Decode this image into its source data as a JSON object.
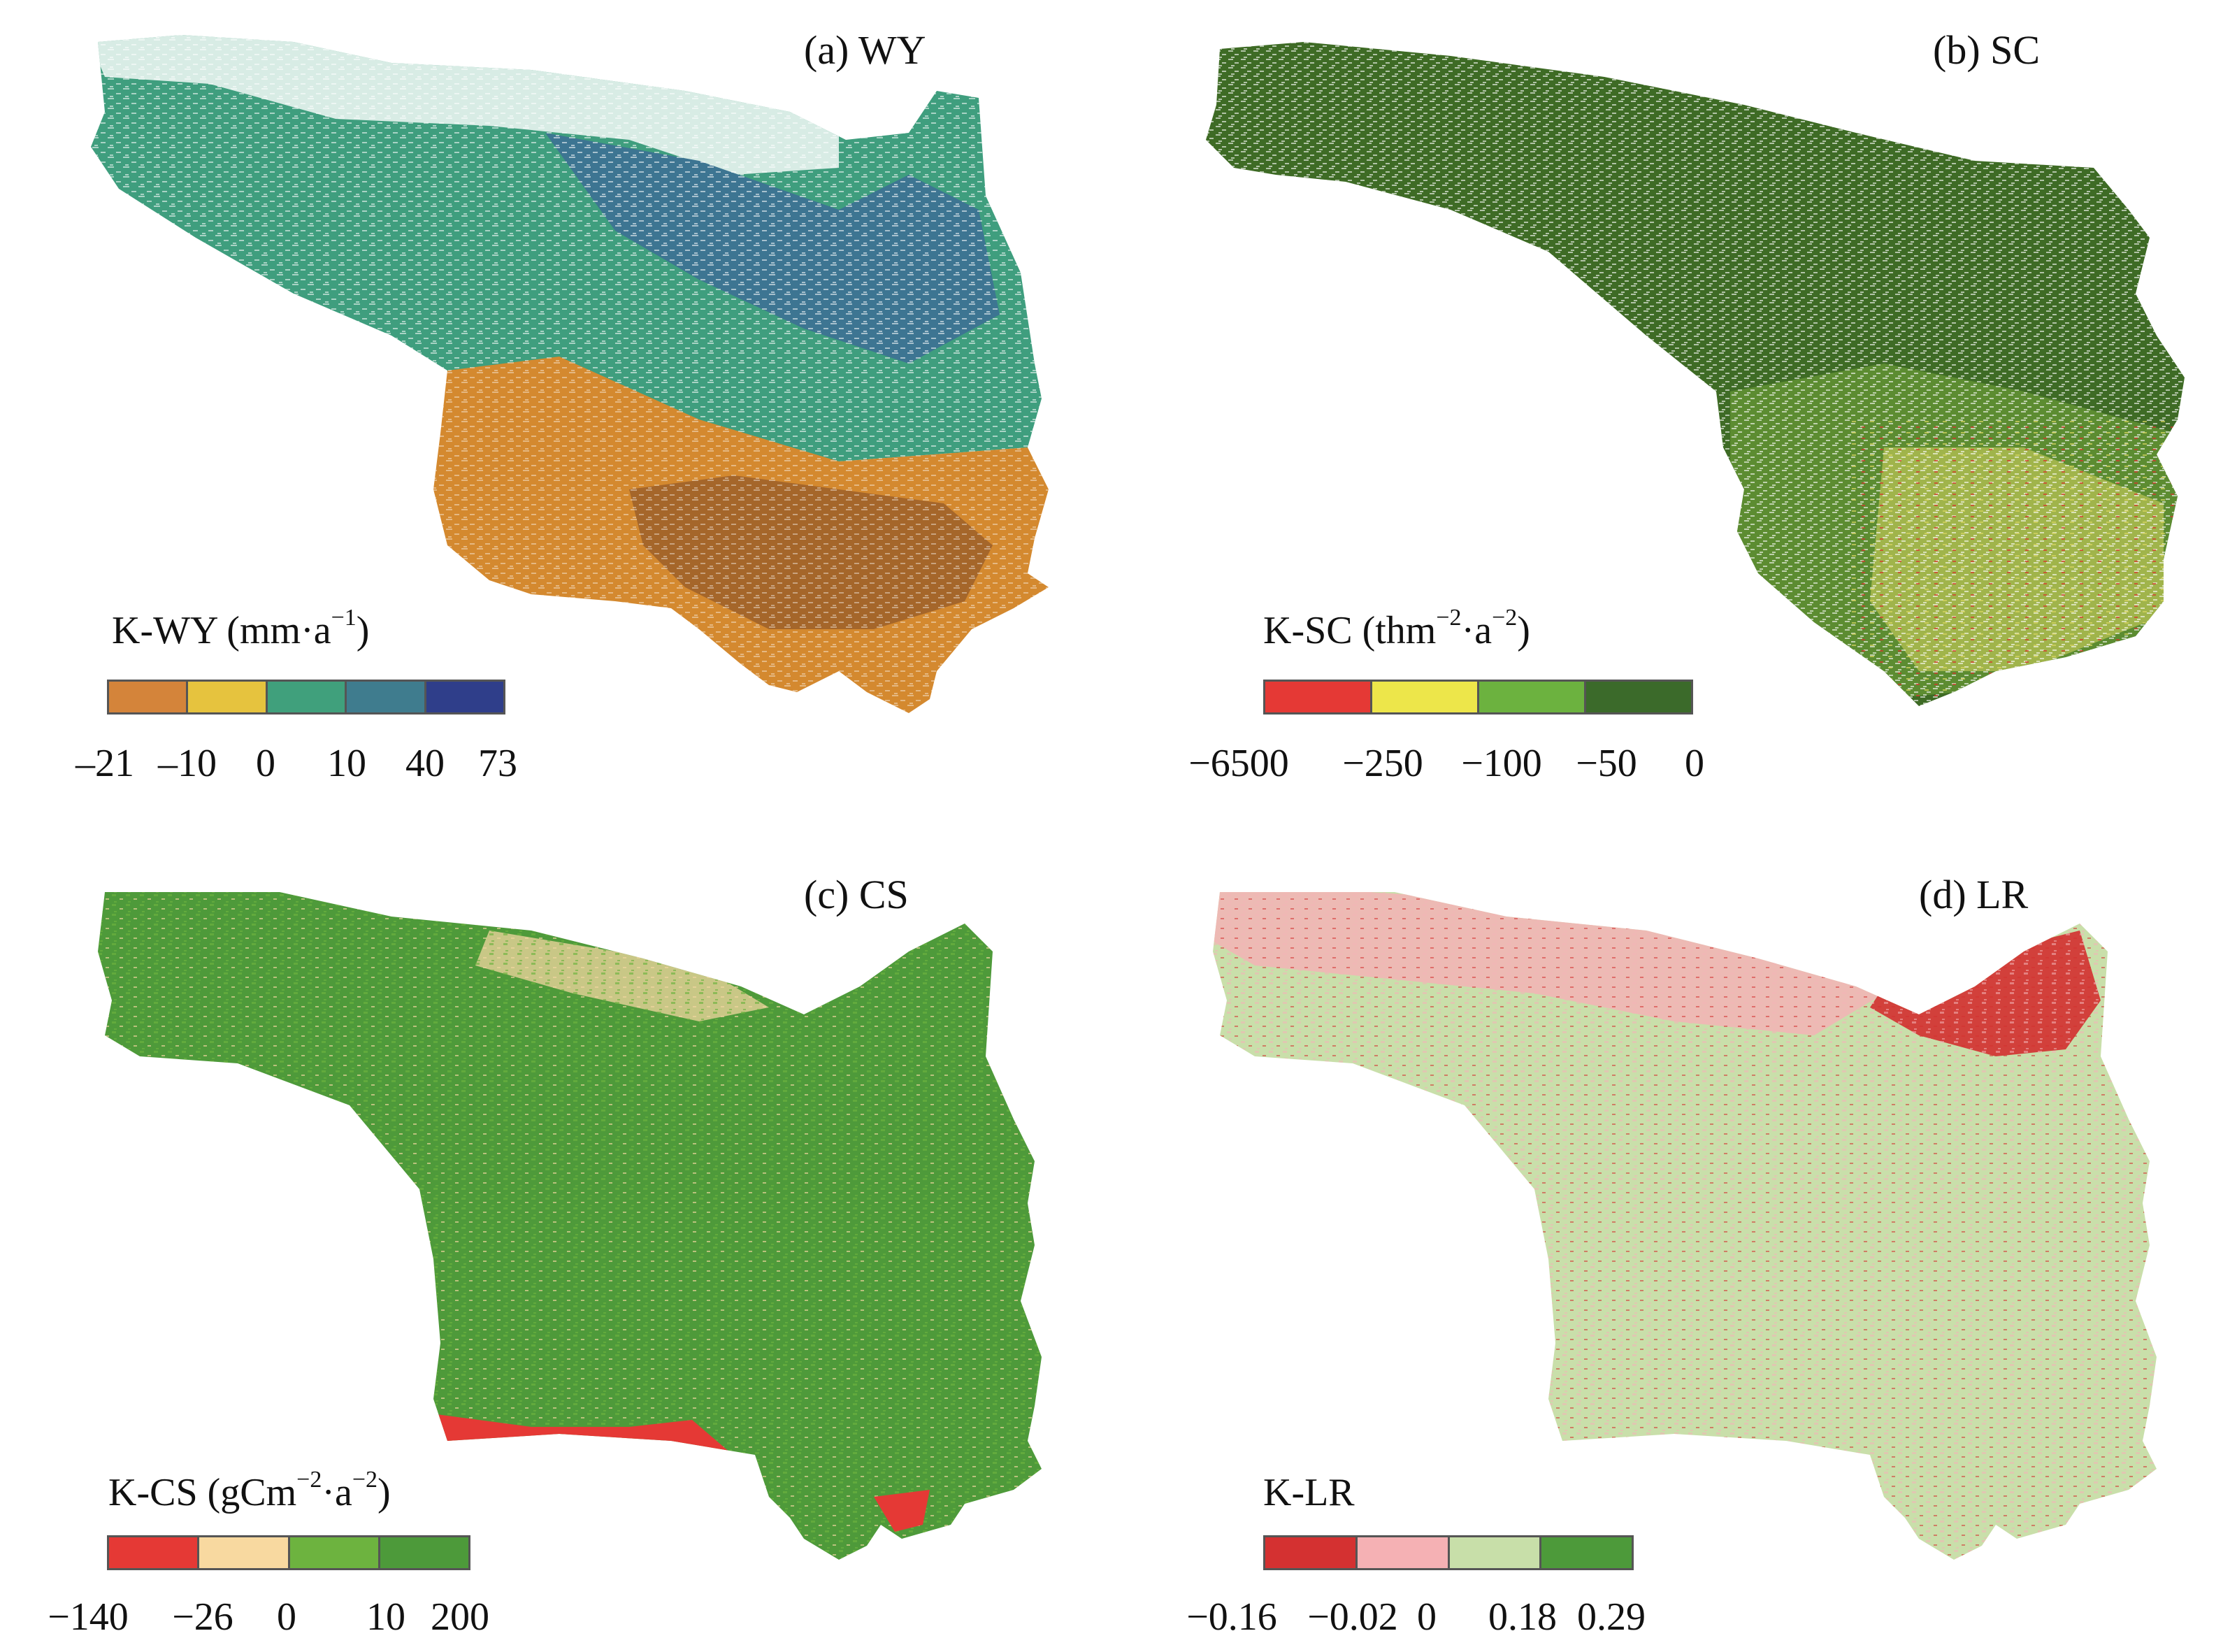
{
  "panels": [
    {
      "id": "a",
      "title": "(a) WY",
      "legend_title": "K-WY (mm·a",
      "legend_unit_sup": "−1",
      "legend_unit_tail": ")",
      "colors": [
        "#D4843A",
        "#E6C33E",
        "#40A07C",
        "#3F7C8E",
        "#2F3E8A"
      ],
      "ticks": [
        "–21",
        "–10",
        "0",
        "10",
        "40",
        "73"
      ],
      "map_colors": {
        "north": "#3F9E7E",
        "north_dark": "#3D7592",
        "south": "#D4892F",
        "south_dark": "#A5662A"
      }
    },
    {
      "id": "b",
      "title": "(b) SC",
      "legend_title": "K-SC (thm",
      "legend_unit_sup": "−2",
      "legend_unit_mid": "·a",
      "legend_unit_sup2": "−2",
      "legend_unit_tail": ")",
      "colors": [
        "#E53935",
        "#EDE64A",
        "#6CB23F",
        "#3B6A2A"
      ],
      "ticks": [
        "−6500",
        "−250",
        "−100",
        "−50",
        "0"
      ],
      "map_colors": {
        "base": "#3E6B25",
        "mid": "#6A9A36",
        "warm": "#D9D660",
        "hot": "#D8322C"
      }
    },
    {
      "id": "c",
      "title": "(c) CS",
      "legend_title": "K-CS (gCm",
      "legend_unit_sup": "−2",
      "legend_unit_mid": "·a",
      "legend_unit_sup2": "−2",
      "legend_unit_tail": ")",
      "colors": [
        "#E53935",
        "#F8D9A0",
        "#6DB33F",
        "#4D9A3A"
      ],
      "ticks": [
        "−140",
        "−26",
        "0",
        "10",
        "200"
      ],
      "map_colors": {
        "base": "#4E9A3A",
        "light": "#6DB33F",
        "pale": "#F3D6A0",
        "red": "#E53935"
      }
    },
    {
      "id": "d",
      "title": "(d) LR",
      "legend_title": "K-LR",
      "colors": [
        "#D43131",
        "#F5B1B4",
        "#C8DFA9",
        "#4D9A3A"
      ],
      "ticks": [
        "−0.16",
        "−0.02",
        "0",
        "0.18",
        "0.29"
      ],
      "map_colors": {
        "base": "#C9DFAA",
        "pink": "#F3B4B6",
        "red": "#D32F2F",
        "green": "#4D9A3A"
      }
    }
  ]
}
